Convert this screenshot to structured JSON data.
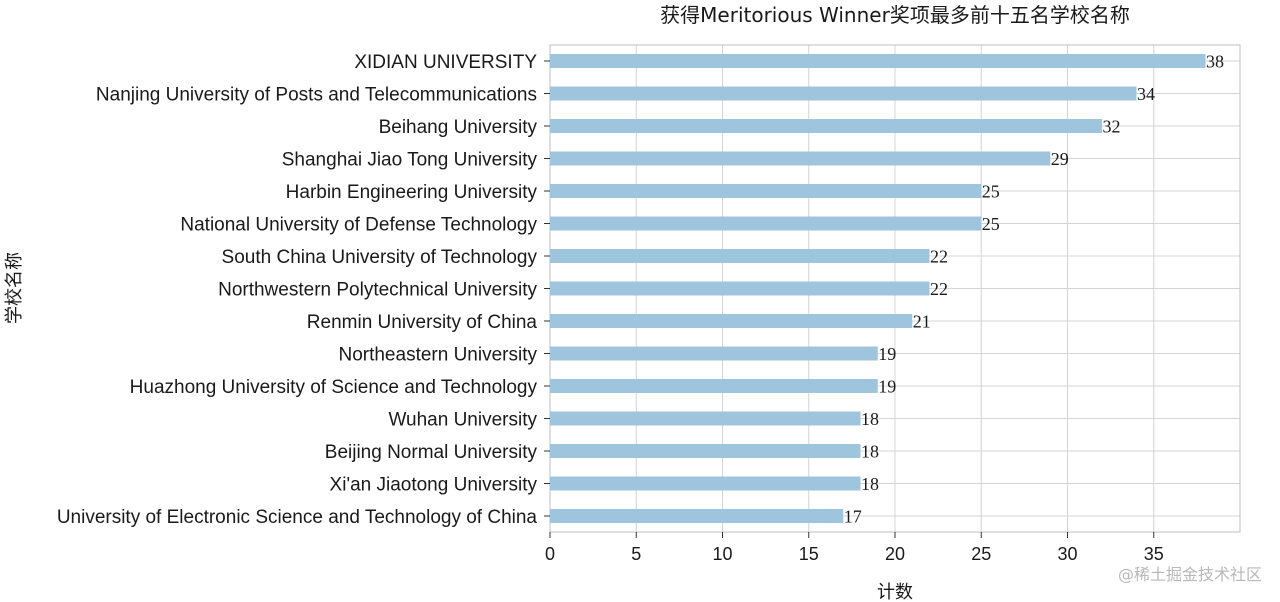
{
  "chart_data": {
    "type": "bar",
    "orientation": "horizontal",
    "title": "获得Meritorious Winner奖项最多前十五名学校名称",
    "xlabel": "计数",
    "ylabel": "学校名称",
    "xlim": [
      0,
      40
    ],
    "xticks": [
      0,
      5,
      10,
      15,
      20,
      25,
      30,
      35
    ],
    "grid": true,
    "bar_color": "#9fc5de",
    "categories": [
      "XIDIAN UNIVERSITY",
      "Nanjing University of Posts and Telecommunications",
      "Beihang University",
      "Shanghai Jiao Tong University",
      "Harbin Engineering University",
      "National University of Defense Technology",
      "South China University of Technology",
      "Northwestern Polytechnical University",
      "Renmin University of China",
      "Northeastern University",
      "Huazhong University of Science and Technology",
      "Wuhan University",
      "Beijing Normal University",
      "Xi'an Jiaotong University",
      "University of Electronic Science and Technology of China"
    ],
    "values": [
      38,
      34,
      32,
      29,
      25,
      25,
      22,
      22,
      21,
      19,
      19,
      18,
      18,
      18,
      17
    ]
  },
  "watermark": "@稀土掘金技术社区"
}
